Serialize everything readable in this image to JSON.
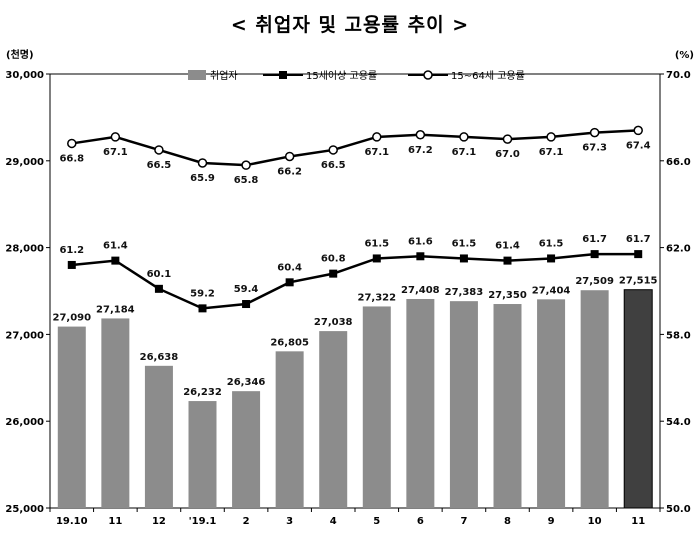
{
  "title": "< 취업자 및 고용률 추이 >",
  "chart_data": {
    "type": "bar+line",
    "left_unit": "(천명)",
    "right_unit": "(%)",
    "categories": [
      "19.10",
      "11",
      "12",
      "'19.1",
      "2",
      "3",
      "4",
      "5",
      "6",
      "7",
      "8",
      "9",
      "10",
      "11"
    ],
    "left_ylim": [
      25000,
      30000
    ],
    "left_ticks": [
      "25,000",
      "26,000",
      "27,000",
      "28,000",
      "29,000",
      "30,000"
    ],
    "right_ylim": [
      50.0,
      70.0
    ],
    "right_ticks": [
      "50.0",
      "54.0",
      "58.0",
      "62.0",
      "66.0",
      "70.0"
    ],
    "series": [
      {
        "name": "취업자",
        "type": "bar",
        "values": [
          27090,
          27184,
          26638,
          26232,
          26346,
          26805,
          27038,
          27322,
          27408,
          27383,
          27350,
          27404,
          27509,
          27515
        ],
        "labels": [
          "27,090",
          "27,184",
          "26,638",
          "26,232",
          "26,346",
          "26,805",
          "27,038",
          "27,322",
          "27,408",
          "27,383",
          "27,350",
          "27,404",
          "27,509",
          "27,515"
        ],
        "color": "#8c8c8c",
        "highlight_color": "#404040"
      },
      {
        "name": "15세이상 고용률",
        "type": "line",
        "marker": "square",
        "values": [
          61.2,
          61.4,
          60.1,
          59.2,
          59.4,
          60.4,
          60.8,
          61.5,
          61.6,
          61.5,
          61.4,
          61.5,
          61.7,
          61.7
        ],
        "labels": [
          "61.2",
          "61.4",
          "60.1",
          "59.2",
          "59.4",
          "60.4",
          "60.8",
          "61.5",
          "61.6",
          "61.5",
          "61.4",
          "61.5",
          "61.7",
          "61.7"
        ]
      },
      {
        "name": "15~64세 고용률",
        "type": "line",
        "marker": "circle",
        "values": [
          66.8,
          67.1,
          66.5,
          65.9,
          65.8,
          66.2,
          66.5,
          67.1,
          67.2,
          67.1,
          67.0,
          67.1,
          67.3,
          67.4
        ],
        "labels": [
          "66.8",
          "67.1",
          "66.5",
          "65.9",
          "65.8",
          "66.2",
          "66.5",
          "67.1",
          "67.2",
          "67.1",
          "67.0",
          "67.1",
          "67.3",
          "67.4"
        ]
      }
    ],
    "legend_position": "top"
  }
}
